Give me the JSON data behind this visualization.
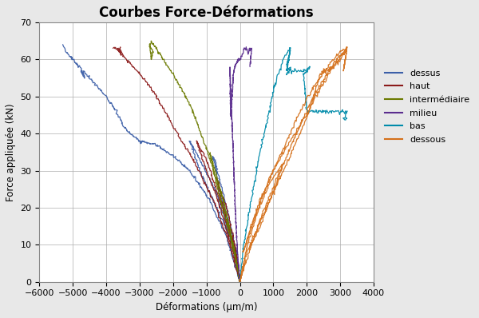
{
  "title": "Courbes Force-Déformations",
  "xlabel": "Déformations (μm/m)",
  "ylabel": "Force appliquée (kN)",
  "xlim": [
    -6000,
    4000
  ],
  "ylim": [
    0,
    70
  ],
  "xticks": [
    -6000,
    -5000,
    -4000,
    -3000,
    -2000,
    -1000,
    0,
    1000,
    2000,
    3000,
    4000
  ],
  "yticks": [
    0,
    10,
    20,
    30,
    40,
    50,
    60,
    70
  ],
  "colors": {
    "dessus": "#3C5FA8",
    "haut": "#8B1A1A",
    "intermediaire": "#6B7A00",
    "milieu": "#5B2D8E",
    "bas": "#008BAA",
    "dessous": "#D4701A"
  },
  "bg_color": "#E8E8E8",
  "plot_bg": "#FFFFFF",
  "grid_color": "#AAAAAA"
}
